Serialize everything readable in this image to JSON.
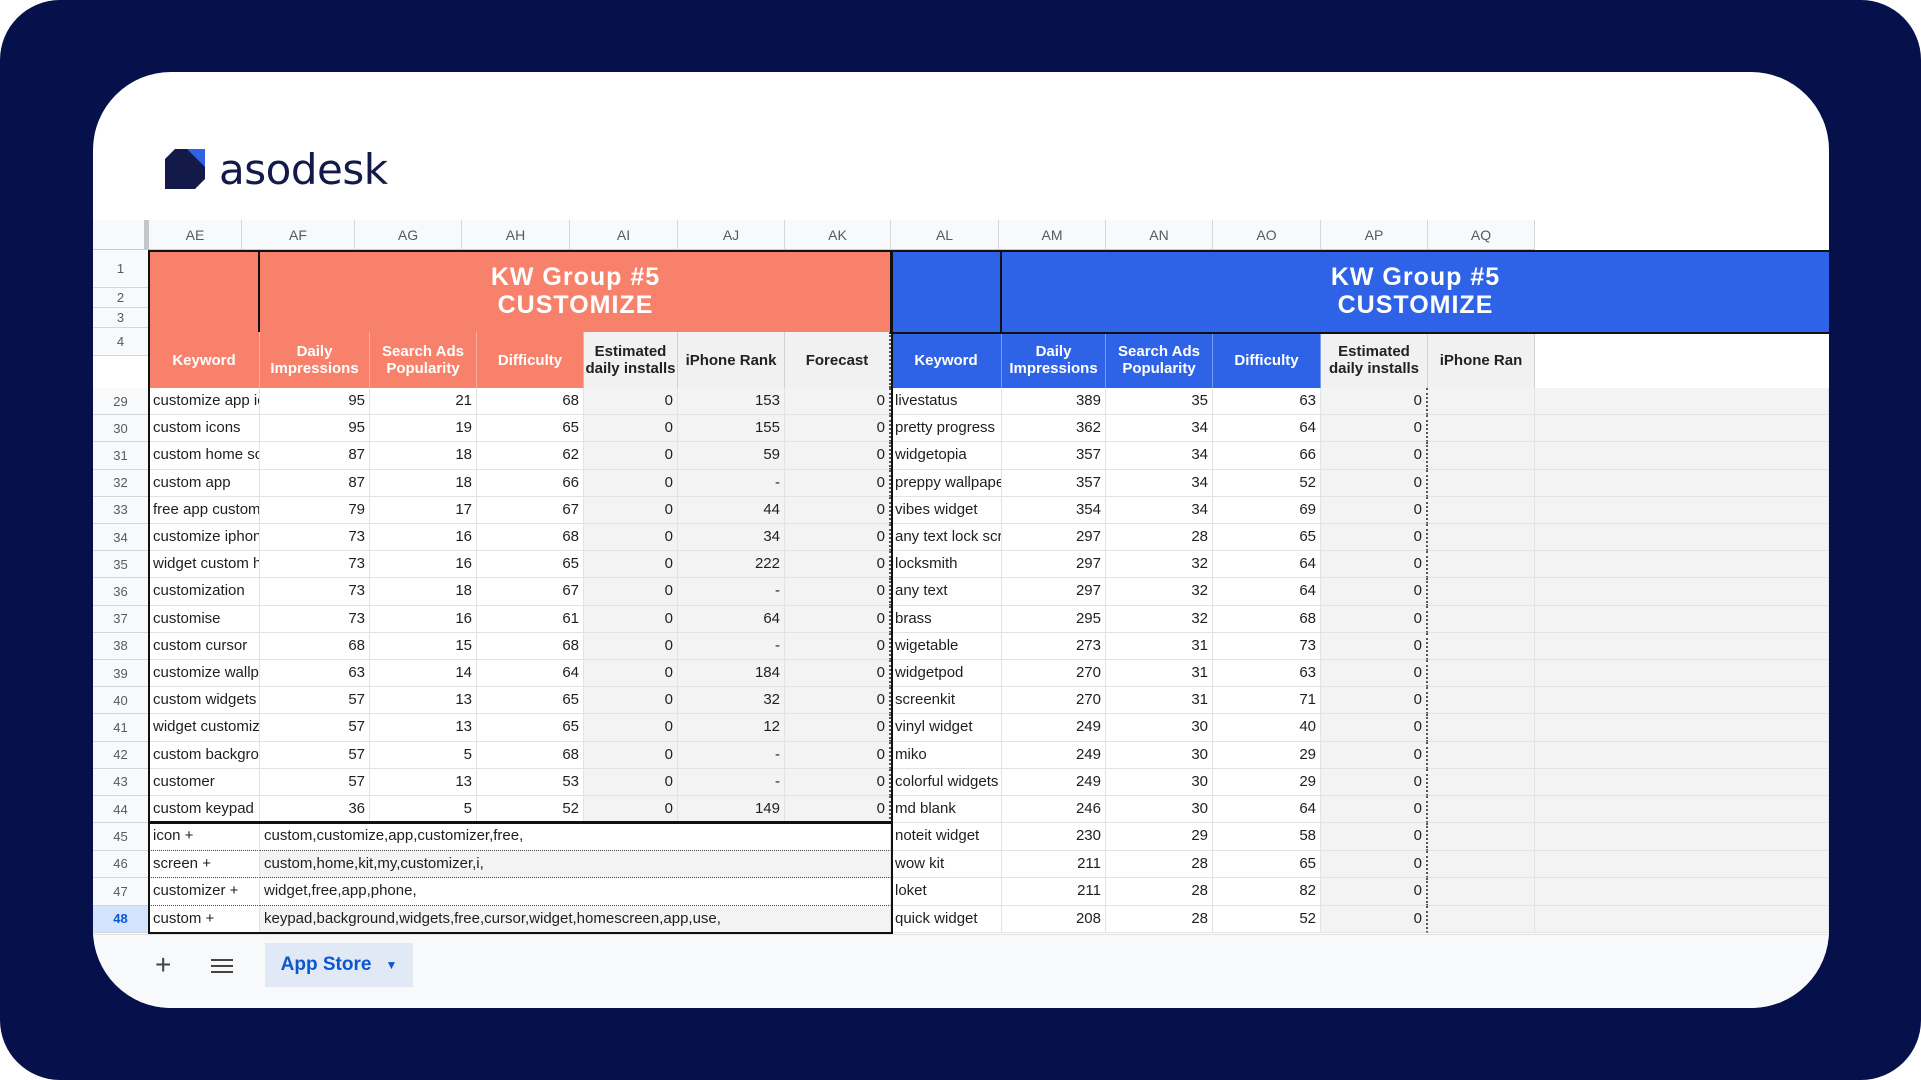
{
  "brand": {
    "name": "asodesk"
  },
  "columns": [
    "AE",
    "AF",
    "AG",
    "AH",
    "AI",
    "AJ",
    "AK",
    "AL",
    "AM",
    "AN",
    "AO",
    "AP",
    "AQ"
  ],
  "group_left": {
    "plus": "+",
    "title_line1": "KW Group #5",
    "title_line2": "CUSTOMIZE",
    "color": "#f8816b"
  },
  "group_right": {
    "plus": "+",
    "title_line1": "KW Group #5",
    "title_line2": "CUSTOMIZE",
    "color": "#2e63e8"
  },
  "headers_left": [
    "Keyword",
    "Daily Impressions",
    "Search Ads Popularity",
    "Difficulty",
    "Estimated daily installs",
    "iPhone Rank",
    "Forecast"
  ],
  "headers_right": [
    "Keyword",
    "Daily Impressions",
    "Search Ads Popularity",
    "Difficulty",
    "Estimated daily installs",
    "iPhone Ran"
  ],
  "top_row_numbers": [
    "1",
    "2",
    "3",
    "4"
  ],
  "rows": [
    {
      "n": "29",
      "l": [
        "customize app icon",
        "95",
        "21",
        "68",
        "0",
        "153",
        "0"
      ],
      "r": [
        "livestatus",
        "389",
        "35",
        "63",
        "0"
      ]
    },
    {
      "n": "30",
      "l": [
        "custom icons",
        "95",
        "19",
        "65",
        "0",
        "155",
        "0"
      ],
      "r": [
        "pretty progress",
        "362",
        "34",
        "64",
        "0"
      ]
    },
    {
      "n": "31",
      "l": [
        "custom home screen",
        "87",
        "18",
        "62",
        "0",
        "59",
        "0"
      ],
      "r": [
        "widgetopia",
        "357",
        "34",
        "66",
        "0"
      ]
    },
    {
      "n": "32",
      "l": [
        "custom app",
        "87",
        "18",
        "66",
        "0",
        "-",
        "0"
      ],
      "r": [
        "preppy wallpaper",
        "357",
        "34",
        "52",
        "0"
      ]
    },
    {
      "n": "33",
      "l": [
        "free app customizer",
        "79",
        "17",
        "67",
        "0",
        "44",
        "0"
      ],
      "r": [
        "vibes widget",
        "354",
        "34",
        "69",
        "0"
      ]
    },
    {
      "n": "34",
      "l": [
        "customize iphone",
        "73",
        "16",
        "68",
        "0",
        "34",
        "0"
      ],
      "r": [
        "any text lock screen",
        "297",
        "28",
        "65",
        "0"
      ]
    },
    {
      "n": "35",
      "l": [
        "widget custom home",
        "73",
        "16",
        "65",
        "0",
        "222",
        "0"
      ],
      "r": [
        "locksmith",
        "297",
        "32",
        "64",
        "0"
      ]
    },
    {
      "n": "36",
      "l": [
        "customization",
        "73",
        "18",
        "67",
        "0",
        "-",
        "0"
      ],
      "r": [
        "any text",
        "297",
        "32",
        "64",
        "0"
      ]
    },
    {
      "n": "37",
      "l": [
        "customise",
        "73",
        "16",
        "61",
        "0",
        "64",
        "0"
      ],
      "r": [
        "brass",
        "295",
        "32",
        "68",
        "0"
      ]
    },
    {
      "n": "38",
      "l": [
        "custom cursor",
        "68",
        "15",
        "68",
        "0",
        "-",
        "0"
      ],
      "r": [
        "wigetable",
        "273",
        "31",
        "73",
        "0"
      ]
    },
    {
      "n": "39",
      "l": [
        "customize wallpaper",
        "63",
        "14",
        "64",
        "0",
        "184",
        "0"
      ],
      "r": [
        "widgetpod",
        "270",
        "31",
        "63",
        "0"
      ]
    },
    {
      "n": "40",
      "l": [
        "custom widgets free",
        "57",
        "13",
        "65",
        "0",
        "32",
        "0"
      ],
      "r": [
        "screenkit",
        "270",
        "31",
        "71",
        "0"
      ]
    },
    {
      "n": "41",
      "l": [
        "widget customizer",
        "57",
        "13",
        "65",
        "0",
        "12",
        "0"
      ],
      "r": [
        "vinyl widget",
        "249",
        "30",
        "40",
        "0"
      ]
    },
    {
      "n": "42",
      "l": [
        "custom background",
        "57",
        "5",
        "68",
        "0",
        "-",
        "0"
      ],
      "r": [
        "miko",
        "249",
        "30",
        "29",
        "0"
      ]
    },
    {
      "n": "43",
      "l": [
        "customer",
        "57",
        "13",
        "53",
        "0",
        "-",
        "0"
      ],
      "r": [
        "colorful widgets",
        "249",
        "30",
        "29",
        "0"
      ]
    },
    {
      "n": "44",
      "l": [
        "custom keypad",
        "36",
        "5",
        "52",
        "0",
        "149",
        "0"
      ],
      "r": [
        "md blank",
        "246",
        "30",
        "64",
        "0"
      ]
    }
  ],
  "combos": [
    {
      "n": "45",
      "k": "icon +",
      "v": "custom,customize,app,customizer,free,",
      "r": [
        "noteit widget",
        "230",
        "29",
        "58",
        "0"
      ]
    },
    {
      "n": "46",
      "k": "screen +",
      "v": "custom,home,kit,my,customizer,i,",
      "r": [
        "wow kit",
        "211",
        "28",
        "65",
        "0"
      ]
    },
    {
      "n": "47",
      "k": "customizer +",
      "v": "widget,free,app,phone,",
      "r": [
        "loket",
        "211",
        "28",
        "82",
        "0"
      ]
    },
    {
      "n": "48",
      "k": "custom +",
      "v": "keypad,background,widgets,free,cursor,widget,homescreen,app,use,",
      "r": [
        "quick widget",
        "208",
        "28",
        "52",
        "0"
      ]
    }
  ],
  "footer": {
    "sheet_tab": "App Store",
    "add_icon": "plus-icon",
    "menu_icon": "menu-icon"
  }
}
